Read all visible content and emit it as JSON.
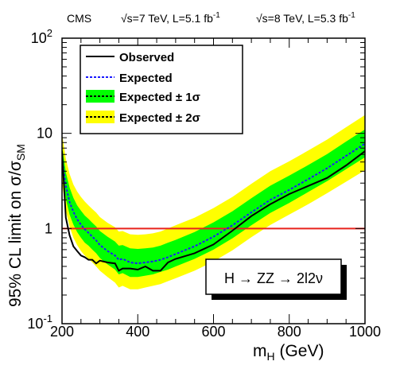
{
  "header": {
    "experiment": "CMS",
    "energy_7": "√s=7 TeV, L=5.1 fb",
    "energy_7_sup": "-1",
    "energy_8": "√s=8 TeV, L=5.3 fb",
    "energy_8_sup": "-1"
  },
  "channel_label": "H → ZZ → 2l2ν",
  "chart_data": {
    "type": "line",
    "xlabel_main": "m",
    "xlabel_sub": "H",
    "xlabel_unit": " (GeV)",
    "ylabel_main": "95% CL limit on σ/σ",
    "ylabel_sub": "SM",
    "xlim": [
      200,
      1000
    ],
    "ylim": [
      0.1,
      100
    ],
    "yscale": "log",
    "grid": false,
    "legend_position": "top-left",
    "xticks": [
      {
        "value": 200,
        "label": "200"
      },
      {
        "value": 400,
        "label": "400"
      },
      {
        "value": 600,
        "label": "600"
      },
      {
        "value": 800,
        "label": "800"
      },
      {
        "value": 1000,
        "label": "1000"
      }
    ],
    "yticks": [
      {
        "value": 0.1,
        "base": "10",
        "exp": "-1"
      },
      {
        "value": 1,
        "base": "1",
        "exp": ""
      },
      {
        "value": 10,
        "base": "10",
        "exp": ""
      },
      {
        "value": 100,
        "base": "10",
        "exp": "2"
      }
    ],
    "reference_line": {
      "y": 1,
      "color": "#e8231d"
    },
    "colors": {
      "observed": "#000000",
      "expected": "#1a1aff",
      "band_1sigma": "#00ff00",
      "band_2sigma": "#ffff00"
    },
    "legend": [
      {
        "key": "observed",
        "label": "Observed",
        "sigma": ""
      },
      {
        "key": "expected",
        "label": "Expected",
        "sigma": ""
      },
      {
        "key": "band_1sigma",
        "label": "Expected ± 1σ",
        "sigma": "1"
      },
      {
        "key": "band_2sigma",
        "label": "Expected ± 2σ",
        "sigma": "2"
      }
    ],
    "mass": [
      200,
      210,
      220,
      230,
      240,
      250,
      260,
      270,
      280,
      290,
      300,
      320,
      340,
      350,
      360,
      380,
      400,
      420,
      440,
      460,
      480,
      500,
      550,
      600,
      650,
      700,
      750,
      800,
      850,
      900,
      950,
      1000
    ],
    "observed": [
      6.5,
      1.3,
      0.85,
      0.65,
      0.58,
      0.52,
      0.5,
      0.47,
      0.47,
      0.43,
      0.46,
      0.44,
      0.43,
      0.36,
      0.38,
      0.38,
      0.37,
      0.4,
      0.36,
      0.36,
      0.44,
      0.48,
      0.55,
      0.68,
      0.95,
      1.35,
      1.8,
      2.3,
      2.8,
      3.4,
      4.6,
      6.5
    ],
    "expected": [
      5.5,
      2.8,
      1.9,
      1.5,
      1.25,
      1.1,
      0.98,
      0.9,
      0.82,
      0.75,
      0.67,
      0.58,
      0.52,
      0.47,
      0.48,
      0.44,
      0.43,
      0.44,
      0.45,
      0.47,
      0.5,
      0.54,
      0.65,
      0.82,
      1.08,
      1.48,
      2.0,
      2.55,
      3.3,
      4.3,
      5.8,
      7.8
    ],
    "band_2sigma_low": [
      3.0,
      1.55,
      1.05,
      0.8,
      0.67,
      0.58,
      0.52,
      0.48,
      0.44,
      0.4,
      0.36,
      0.31,
      0.27,
      0.24,
      0.25,
      0.23,
      0.23,
      0.24,
      0.25,
      0.26,
      0.28,
      0.3,
      0.36,
      0.45,
      0.59,
      0.81,
      1.09,
      1.4,
      1.8,
      2.35,
      3.1,
      4.1
    ],
    "band_1sigma_low": [
      4.0,
      2.05,
      1.4,
      1.1,
      0.92,
      0.8,
      0.71,
      0.66,
      0.6,
      0.55,
      0.49,
      0.42,
      0.37,
      0.33,
      0.34,
      0.31,
      0.31,
      0.32,
      0.33,
      0.35,
      0.37,
      0.4,
      0.48,
      0.6,
      0.79,
      1.08,
      1.46,
      1.86,
      2.42,
      3.15,
      4.2,
      5.6
    ],
    "band_1sigma_high": [
      7.5,
      3.9,
      2.7,
      2.1,
      1.75,
      1.54,
      1.37,
      1.26,
      1.15,
      1.05,
      0.94,
      0.82,
      0.73,
      0.66,
      0.67,
      0.62,
      0.61,
      0.62,
      0.63,
      0.66,
      0.71,
      0.76,
      0.92,
      1.16,
      1.52,
      2.08,
      2.82,
      3.6,
      4.65,
      6.05,
      8.2,
      11.0
    ],
    "band_2sigma_high": [
      10.0,
      5.4,
      3.75,
      2.9,
      2.45,
      2.15,
      1.92,
      1.75,
      1.6,
      1.47,
      1.32,
      1.15,
      1.03,
      0.93,
      0.94,
      0.87,
      0.86,
      0.87,
      0.89,
      0.93,
      1.0,
      1.08,
      1.3,
      1.64,
      2.15,
      2.95,
      4.0,
      5.1,
      6.6,
      8.6,
      11.6,
      15.6
    ]
  }
}
